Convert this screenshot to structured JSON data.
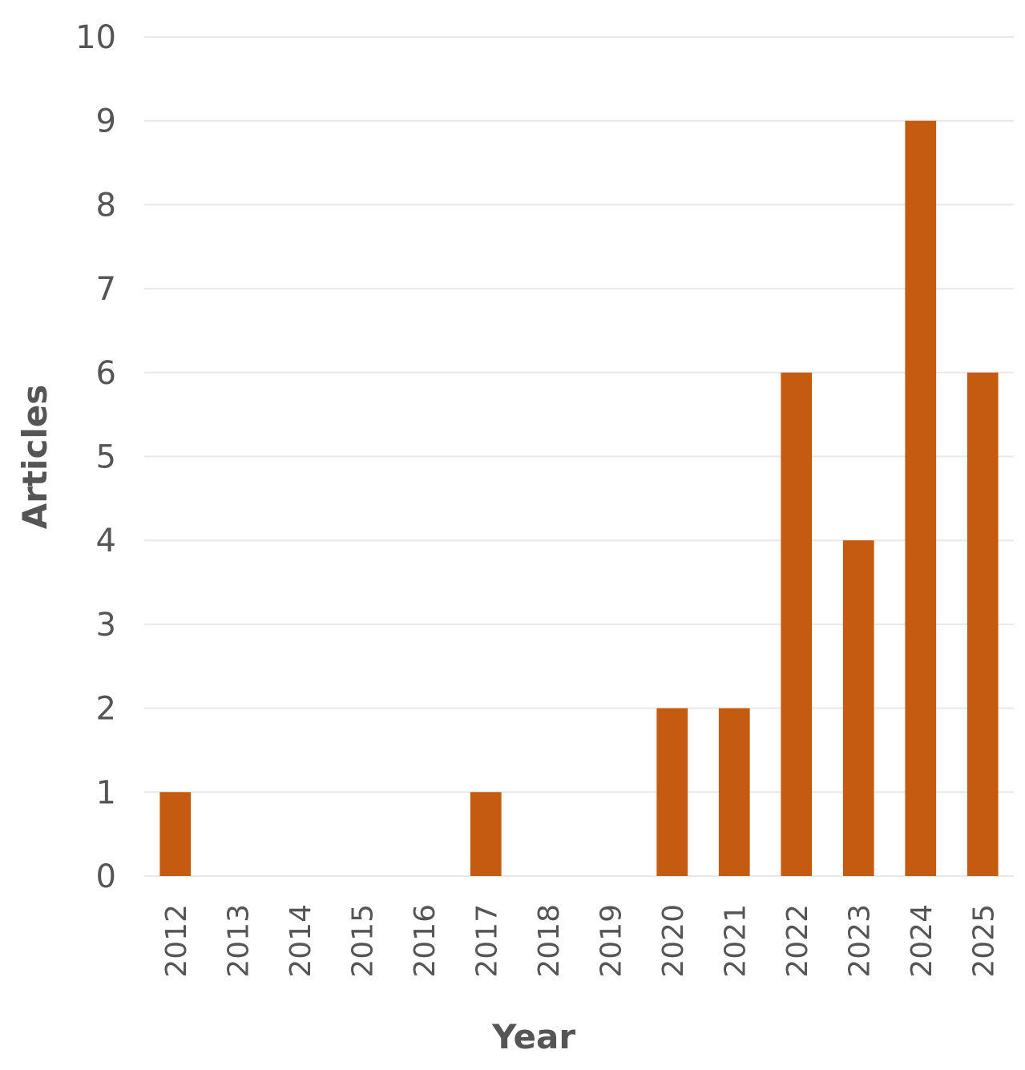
{
  "chart_data": {
    "type": "bar",
    "title": "",
    "xlabel": "Year",
    "ylabel": "Articles",
    "categories": [
      "2012",
      "2013",
      "2014",
      "2015",
      "2016",
      "2017",
      "2018",
      "2019",
      "2020",
      "2021",
      "2022",
      "2023",
      "2024",
      "2025"
    ],
    "values": [
      1,
      0,
      0,
      0,
      0,
      1,
      0,
      0,
      2,
      2,
      6,
      4,
      9,
      6
    ],
    "ylim": [
      0,
      10
    ],
    "yticks": [
      "0",
      "1",
      "2",
      "3",
      "4",
      "5",
      "6",
      "7",
      "8",
      "9",
      "10"
    ],
    "grid": true,
    "legend": "none",
    "bar_color": "#c55a11"
  }
}
